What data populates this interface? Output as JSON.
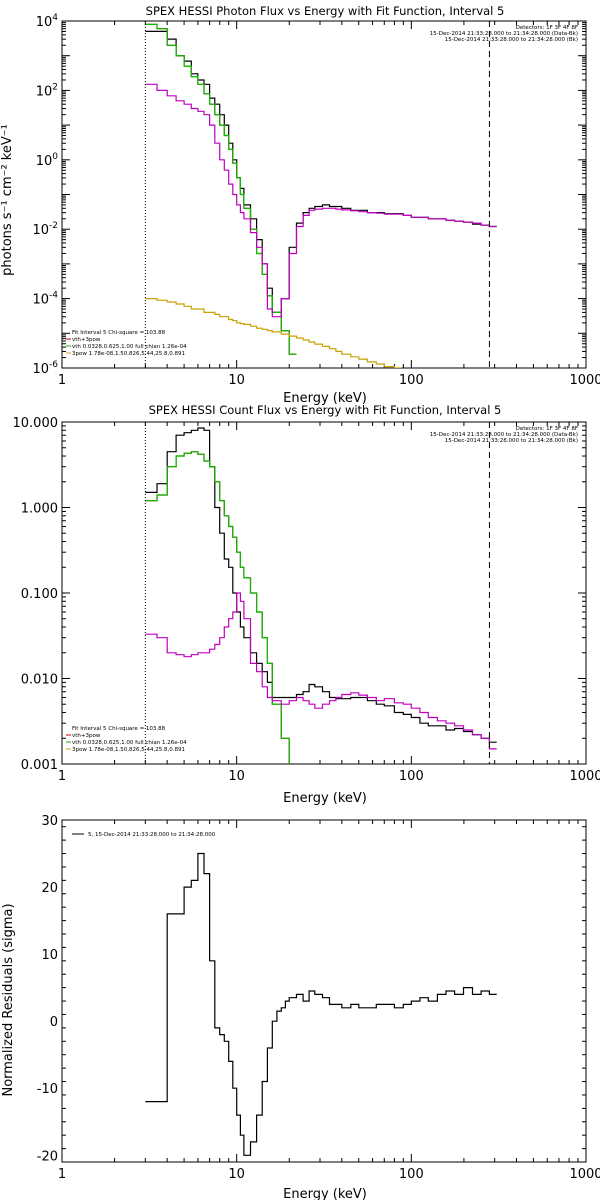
{
  "chart_data": [
    {
      "type": "line",
      "step": true,
      "title": "SPEX HESSI Photon Flux vs Energy with Fit Function, Interval 5",
      "xlabel": "Energy (keV)",
      "ylabel": "photons s⁻¹ cm⁻² keV⁻¹",
      "xscale": "log",
      "yscale": "log",
      "xlim": [
        1,
        1000
      ],
      "ylim": [
        1e-06,
        10000.0
      ],
      "x_ticks": [
        1,
        10,
        100,
        1000
      ],
      "x_tick_labels": [
        "1",
        "10",
        "100",
        "1000"
      ],
      "y_ticks": [
        1e-06,
        0.0001,
        0.01,
        1,
        100,
        10000
      ],
      "y_tick_labels": [
        {
          "base": "10",
          "exp": "-6"
        },
        {
          "base": "10",
          "exp": "-4"
        },
        {
          "base": "10",
          "exp": "-2"
        },
        {
          "base": "10",
          "exp": "0"
        },
        {
          "base": "10",
          "exp": "2"
        },
        {
          "base": "10",
          "exp": "4"
        }
      ],
      "vlines": [
        {
          "x": 3,
          "style": "dotted",
          "color": "#000000"
        },
        {
          "x": 280,
          "style": "dashed",
          "color": "#000000"
        }
      ],
      "info_lines": [
        "Detectors: 1F 3F 4F 8F",
        "15-Dec-2014 21:33:28.000 to 21:34:28.000 (Data-Bk)",
        "15-Dec-2014 21:33:28.000 to 21:34:28.000 (Bk)"
      ],
      "info_line_colors": [
        "#000000",
        "#000000",
        "#c000c0"
      ],
      "fit_lines": [
        {
          "text": "Fit Interval 5   Chi-square = 103.88",
          "color": "#000000"
        },
        {
          "text": "vth+3pow",
          "color": "#cc0000"
        },
        {
          "text": "vth 0.0328,0.625,1.00  full chian 1.26e-04",
          "color": "#00c000"
        },
        {
          "text": "3pow 1.78e-08,1.50,826,5.44,25.8,0.891",
          "color": "#c8a000"
        }
      ],
      "series": [
        {
          "name": "Data-Bk",
          "color": "#000000",
          "x": [
            3.0,
            3.5,
            4.0,
            4.5,
            5.0,
            5.5,
            6.0,
            6.5,
            7.0,
            7.5,
            8.0,
            8.5,
            9.0,
            9.5,
            10.0,
            10.5,
            11.0,
            12.0,
            13.0,
            14.0,
            15.0,
            16.0,
            18.0,
            20.0,
            22.0,
            24.0,
            26.0,
            28.0,
            31.0,
            34.0,
            37.0,
            40.0,
            45.0,
            50.0,
            56.0,
            63.0,
            70.0,
            80.0,
            90.0,
            100.0,
            112.0,
            125.0,
            141.0,
            158.0,
            177.0,
            199.0,
            224.0,
            251.0,
            280.0
          ],
          "y": [
            5000,
            5000,
            3000,
            1000,
            700,
            300,
            200,
            150,
            60,
            40,
            20,
            10,
            3,
            1,
            0.3,
            0.15,
            0.05,
            0.02,
            0.005,
            0.001,
            0.0002,
            4e-05,
            0.0001,
            0.003,
            0.015,
            0.03,
            0.04,
            0.045,
            0.05,
            0.045,
            0.045,
            0.04,
            0.035,
            0.035,
            0.03,
            0.03,
            0.028,
            0.028,
            0.025,
            0.022,
            0.022,
            0.02,
            0.02,
            0.018,
            0.017,
            0.016,
            0.014,
            0.013,
            0.012
          ]
        },
        {
          "name": "vth+3pow",
          "color": "#cc0000",
          "x": [
            3.0,
            3.5,
            4.0,
            4.5,
            5.0,
            5.5,
            6.0,
            6.5,
            7.0,
            7.5,
            8.0,
            8.5,
            9.0,
            9.5,
            10.0,
            10.5,
            11.0,
            12.0,
            13.0,
            14.0,
            15.0,
            16.0,
            18.0,
            20.0
          ],
          "y": [
            8000,
            6000,
            2000,
            1000,
            500,
            250,
            150,
            80,
            40,
            20,
            10,
            5,
            2,
            0.8,
            0.3,
            0.1,
            0.04,
            0.01,
            0.002,
            0.0005,
            0.00012,
            4e-05,
            1.2e-05,
            2.5e-06
          ]
        },
        {
          "name": "vth",
          "color": "#00c000",
          "x": [
            3.0,
            3.5,
            4.0,
            4.5,
            5.0,
            5.5,
            6.0,
            6.5,
            7.0,
            7.5,
            8.0,
            8.5,
            9.0,
            9.5,
            10.0,
            10.5,
            11.0,
            12.0,
            13.0,
            14.0,
            15.0,
            16.0,
            18.0,
            20.0
          ],
          "y": [
            8000,
            6000,
            2000,
            1000,
            500,
            250,
            150,
            80,
            40,
            20,
            10,
            5,
            2,
            0.8,
            0.3,
            0.1,
            0.04,
            0.01,
            0.002,
            0.0005,
            0.00012,
            4e-05,
            1.2e-05,
            2.5e-06
          ]
        },
        {
          "name": "3pow",
          "color": "#c8a000",
          "x": [
            3.0,
            3.5,
            4.0,
            4.5,
            5.0,
            5.5,
            6.0,
            6.5,
            7.0,
            7.5,
            8.0,
            8.5,
            9.0,
            9.5,
            10.0,
            10.5,
            11.0,
            12.0,
            13.0,
            14.0,
            15.0,
            16.0,
            18.0,
            20.0,
            22.0,
            24.0,
            26.0,
            28.0,
            31.0,
            34.0,
            37.0,
            40.0,
            45.0,
            50.0,
            56.0,
            63.0,
            70.0,
            80.0
          ],
          "y": [
            0.0001,
            9e-05,
            8e-05,
            7e-05,
            6e-05,
            5e-05,
            5e-05,
            4e-05,
            4e-05,
            3.5e-05,
            3e-05,
            3e-05,
            2.5e-05,
            2.3e-05,
            2e-05,
            1.9e-05,
            1.8e-05,
            1.6e-05,
            1.4e-05,
            1.3e-05,
            1.2e-05,
            1.1e-05,
            9.5e-06,
            8.3e-06,
            7.3e-06,
            6.4e-06,
            5.6e-06,
            4.9e-06,
            4.2e-06,
            3.6e-06,
            3e-06,
            2.5e-06,
            2.1e-06,
            1.8e-06,
            1.5e-06,
            1.3e-06,
            1.1e-06,
            1e-06
          ]
        },
        {
          "name": "Bk",
          "color": "#c000c0",
          "x": [
            3.0,
            3.5,
            4.0,
            4.5,
            5.0,
            5.5,
            6.0,
            6.5,
            7.0,
            7.5,
            8.0,
            8.5,
            9.0,
            9.5,
            10.0,
            10.5,
            11.0,
            12.0,
            13.0,
            14.0,
            15.0,
            16.0,
            18.0,
            20.0,
            22.0,
            24.0,
            26.0,
            28.0,
            31.0,
            34.0,
            37.0,
            40.0,
            45.0,
            50.0,
            56.0,
            63.0,
            70.0,
            80.0,
            90.0,
            100.0,
            112.0,
            125.0,
            141.0,
            158.0,
            177.0,
            199.0,
            224.0,
            251.0,
            280.0
          ],
          "y": [
            150,
            100,
            70,
            50,
            40,
            30,
            25,
            20,
            10,
            3,
            1,
            0.5,
            0.2,
            0.1,
            0.05,
            0.03,
            0.02,
            0.008,
            0.003,
            0.001,
            5e-05,
            3e-05,
            0.0001,
            0.002,
            0.012,
            0.025,
            0.035,
            0.038,
            0.04,
            0.04,
            0.038,
            0.036,
            0.034,
            0.032,
            0.03,
            0.029,
            0.027,
            0.027,
            0.025,
            0.022,
            0.022,
            0.02,
            0.02,
            0.018,
            0.017,
            0.016,
            0.015,
            0.013,
            0.012
          ]
        }
      ]
    },
    {
      "type": "line",
      "step": true,
      "title": "SPEX HESSI Count Flux vs Energy with Fit Function, Interval 5",
      "xlabel": "Energy (keV)",
      "ylabel": "",
      "xscale": "log",
      "yscale": "log",
      "xlim": [
        1,
        1000
      ],
      "ylim": [
        0.001,
        10
      ],
      "x_ticks": [
        1,
        10,
        100,
        1000
      ],
      "x_tick_labels": [
        "1",
        "10",
        "100",
        "1000"
      ],
      "y_ticks": [
        0.001,
        0.01,
        0.1,
        1,
        10
      ],
      "y_tick_labels": [
        "0.001",
        "0.010",
        "0.100",
        "1.000",
        "10.000"
      ],
      "vlines": [
        {
          "x": 3,
          "style": "dotted",
          "color": "#000000"
        },
        {
          "x": 280,
          "style": "dashed",
          "color": "#000000"
        }
      ],
      "info_lines": [
        "Detectors: 1F 3F 4F 8F",
        "15-Dec-2014 21:33:28.000 to 21:34:28.000 (Data-Bk)",
        "15-Dec-2014 21:33:28.000 to 21:34:28.000 (Bk)"
      ],
      "info_line_colors": [
        "#000000",
        "#000000",
        "#c000c0"
      ],
      "fit_lines": [
        {
          "text": "Fit Interval 5   Chi-square = 103.88",
          "color": "#000000"
        },
        {
          "text": "vth+3pow",
          "color": "#cc0000"
        },
        {
          "text": "vth 0.0328,0.625,1.00  full chian 1.26e-04",
          "color": "#00c000"
        },
        {
          "text": "3pow 1.78e-08,1.50,826,5.44,25.8,0.891",
          "color": "#c8a000"
        }
      ],
      "series": [
        {
          "name": "Data-Bk",
          "color": "#000000",
          "x": [
            3.0,
            3.5,
            4.0,
            4.5,
            5.0,
            5.5,
            6.0,
            6.5,
            7.0,
            7.5,
            8.0,
            8.5,
            9.0,
            9.5,
            10.0,
            10.5,
            11.0,
            12.0,
            13.0,
            14.0,
            15.0,
            16.0,
            18.0,
            20.0,
            22.0,
            24.0,
            26.0,
            28.0,
            31.0,
            34.0,
            37.0,
            40.0,
            45.0,
            50.0,
            56.0,
            63.0,
            70.0,
            80.0,
            90.0,
            100.0,
            112.0,
            125.0,
            141.0,
            158.0,
            177.0,
            199.0,
            224.0,
            251.0,
            280.0
          ],
          "y": [
            1.5,
            1.9,
            4.5,
            7.0,
            7.5,
            8.0,
            8.5,
            8.0,
            3.0,
            1.0,
            0.5,
            0.25,
            0.2,
            0.1,
            0.06,
            0.04,
            0.03,
            0.02,
            0.015,
            0.012,
            0.009,
            0.006,
            0.006,
            0.006,
            0.0065,
            0.007,
            0.0085,
            0.008,
            0.007,
            0.006,
            0.0058,
            0.0058,
            0.006,
            0.006,
            0.0055,
            0.005,
            0.0048,
            0.004,
            0.0038,
            0.0035,
            0.003,
            0.0028,
            0.0028,
            0.0025,
            0.0026,
            0.0024,
            0.0022,
            0.002,
            0.0018
          ]
        },
        {
          "name": "vth+3pow",
          "color": "#cc0000",
          "x": [
            3.0,
            3.5,
            4.0,
            4.5,
            5.0,
            5.5,
            6.0,
            6.5,
            7.0,
            7.5,
            8.0,
            8.5,
            9.0,
            9.5,
            10.0,
            10.5,
            11.0,
            12.0,
            13.0,
            14.0,
            15.0,
            16.0,
            18.0,
            20.0
          ],
          "y": [
            1.2,
            1.4,
            3.0,
            4.0,
            4.3,
            4.5,
            4.2,
            3.5,
            3.0,
            2.0,
            1.2,
            0.8,
            0.6,
            0.45,
            0.3,
            0.2,
            0.15,
            0.1,
            0.06,
            0.03,
            0.015,
            0.005,
            0.002,
            0.0008
          ]
        },
        {
          "name": "vth",
          "color": "#00c000",
          "x": [
            3.0,
            3.5,
            4.0,
            4.5,
            5.0,
            5.5,
            6.0,
            6.5,
            7.0,
            7.5,
            8.0,
            8.5,
            9.0,
            9.5,
            10.0,
            10.5,
            11.0,
            12.0,
            13.0,
            14.0,
            15.0,
            16.0,
            18.0,
            20.0
          ],
          "y": [
            1.2,
            1.4,
            3.0,
            4.0,
            4.3,
            4.5,
            4.2,
            3.5,
            3.0,
            2.0,
            1.2,
            0.8,
            0.6,
            0.45,
            0.3,
            0.2,
            0.15,
            0.1,
            0.06,
            0.03,
            0.015,
            0.005,
            0.002,
            0.0008
          ]
        },
        {
          "name": "Bk",
          "color": "#c000c0",
          "x": [
            3.0,
            3.5,
            4.0,
            4.5,
            5.0,
            5.5,
            6.0,
            6.5,
            7.0,
            7.5,
            8.0,
            8.5,
            9.0,
            9.5,
            10.0,
            10.5,
            11.0,
            12.0,
            13.0,
            14.0,
            15.0,
            16.0,
            18.0,
            20.0,
            22.0,
            24.0,
            26.0,
            28.0,
            31.0,
            34.0,
            37.0,
            40.0,
            45.0,
            50.0,
            56.0,
            63.0,
            70.0,
            80.0,
            90.0,
            100.0,
            112.0,
            125.0,
            141.0,
            158.0,
            177.0,
            199.0,
            224.0,
            251.0,
            280.0
          ],
          "y": [
            0.033,
            0.03,
            0.02,
            0.019,
            0.018,
            0.019,
            0.02,
            0.02,
            0.022,
            0.025,
            0.03,
            0.04,
            0.05,
            0.06,
            0.1,
            0.08,
            0.05,
            0.015,
            0.012,
            0.008,
            0.006,
            0.0055,
            0.005,
            0.0055,
            0.006,
            0.0055,
            0.005,
            0.0045,
            0.005,
            0.0055,
            0.006,
            0.0065,
            0.0068,
            0.0064,
            0.006,
            0.0055,
            0.0058,
            0.0052,
            0.005,
            0.0045,
            0.004,
            0.0035,
            0.0032,
            0.003,
            0.0028,
            0.0025,
            0.0022,
            0.002,
            0.0015
          ]
        }
      ]
    },
    {
      "type": "line",
      "step": true,
      "title": "",
      "xlabel": "Energy (keV)",
      "ylabel": "Normalized Residuals (sigma)",
      "xscale": "log",
      "yscale": "linear",
      "xlim": [
        1,
        1000
      ],
      "ylim": [
        -21,
        30
      ],
      "x_ticks": [
        1,
        10,
        100,
        1000
      ],
      "x_tick_labels": [
        "1",
        "10",
        "100",
        "1000"
      ],
      "y_ticks": [
        -20,
        -10,
        0,
        10,
        20,
        30
      ],
      "y_tick_labels": [
        "-20",
        "-10",
        "0",
        "10",
        "20",
        "30"
      ],
      "legend": "5, 15-Dec-2014 21:33:28.000 to 21:34:28.000",
      "series": [
        {
          "name": "5, 15-Dec-2014 21:33:28.000 to 21:34:28.000",
          "color": "#000000",
          "x": [
            3.0,
            3.5,
            4.0,
            4.5,
            5.0,
            5.5,
            6.0,
            6.5,
            7.0,
            7.5,
            8.0,
            8.5,
            9.0,
            9.5,
            10.0,
            10.5,
            11.0,
            12.0,
            13.0,
            14.0,
            15.0,
            16.0,
            17.0,
            18.0,
            19.0,
            20.0,
            22.0,
            24.0,
            26.0,
            28.0,
            31.0,
            34.0,
            37.0,
            40.0,
            45.0,
            50.0,
            56.0,
            63.0,
            70.0,
            80.0,
            90.0,
            100.0,
            112.0,
            125.0,
            141.0,
            158.0,
            177.0,
            199.0,
            224.0,
            251.0,
            280.0
          ],
          "y": [
            -12,
            -12,
            16,
            16,
            20,
            21,
            25,
            22,
            9,
            -1,
            -2,
            -3,
            -6,
            -10,
            -14,
            -17,
            -20,
            -18,
            -14,
            -9,
            -4,
            0,
            1.5,
            2,
            3,
            3.5,
            4,
            3,
            4.5,
            4,
            3.5,
            2.5,
            2.5,
            2,
            2.5,
            2,
            2,
            2.5,
            2.5,
            2,
            2.5,
            3,
            3.5,
            3,
            4,
            4.5,
            4,
            5,
            4,
            4.5,
            4
          ]
        }
      ]
    }
  ]
}
